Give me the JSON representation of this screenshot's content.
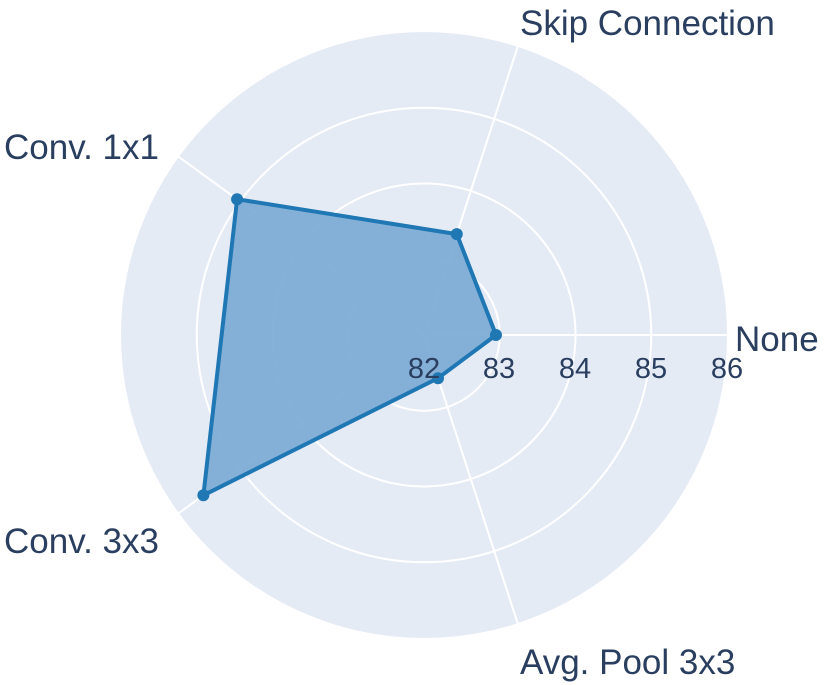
{
  "chart_data": {
    "type": "radar",
    "categories": [
      "None",
      "Skip Connection",
      "Conv. 1x1",
      "Conv. 3x3",
      "Avg. Pool 3x3"
    ],
    "series": [
      {
        "values": [
          82.95,
          83.4,
          85.05,
          85.6,
          82.6
        ]
      }
    ],
    "radial_ticks": [
      "82",
      "83",
      "84",
      "85",
      "86"
    ],
    "range": [
      82,
      86
    ],
    "grid": true,
    "colors": {
      "line": "#1f77b4",
      "fill": "#7eadd6",
      "background": "#e5ebf5",
      "grid": "#ffffff",
      "text": "#2a3f5f"
    }
  }
}
